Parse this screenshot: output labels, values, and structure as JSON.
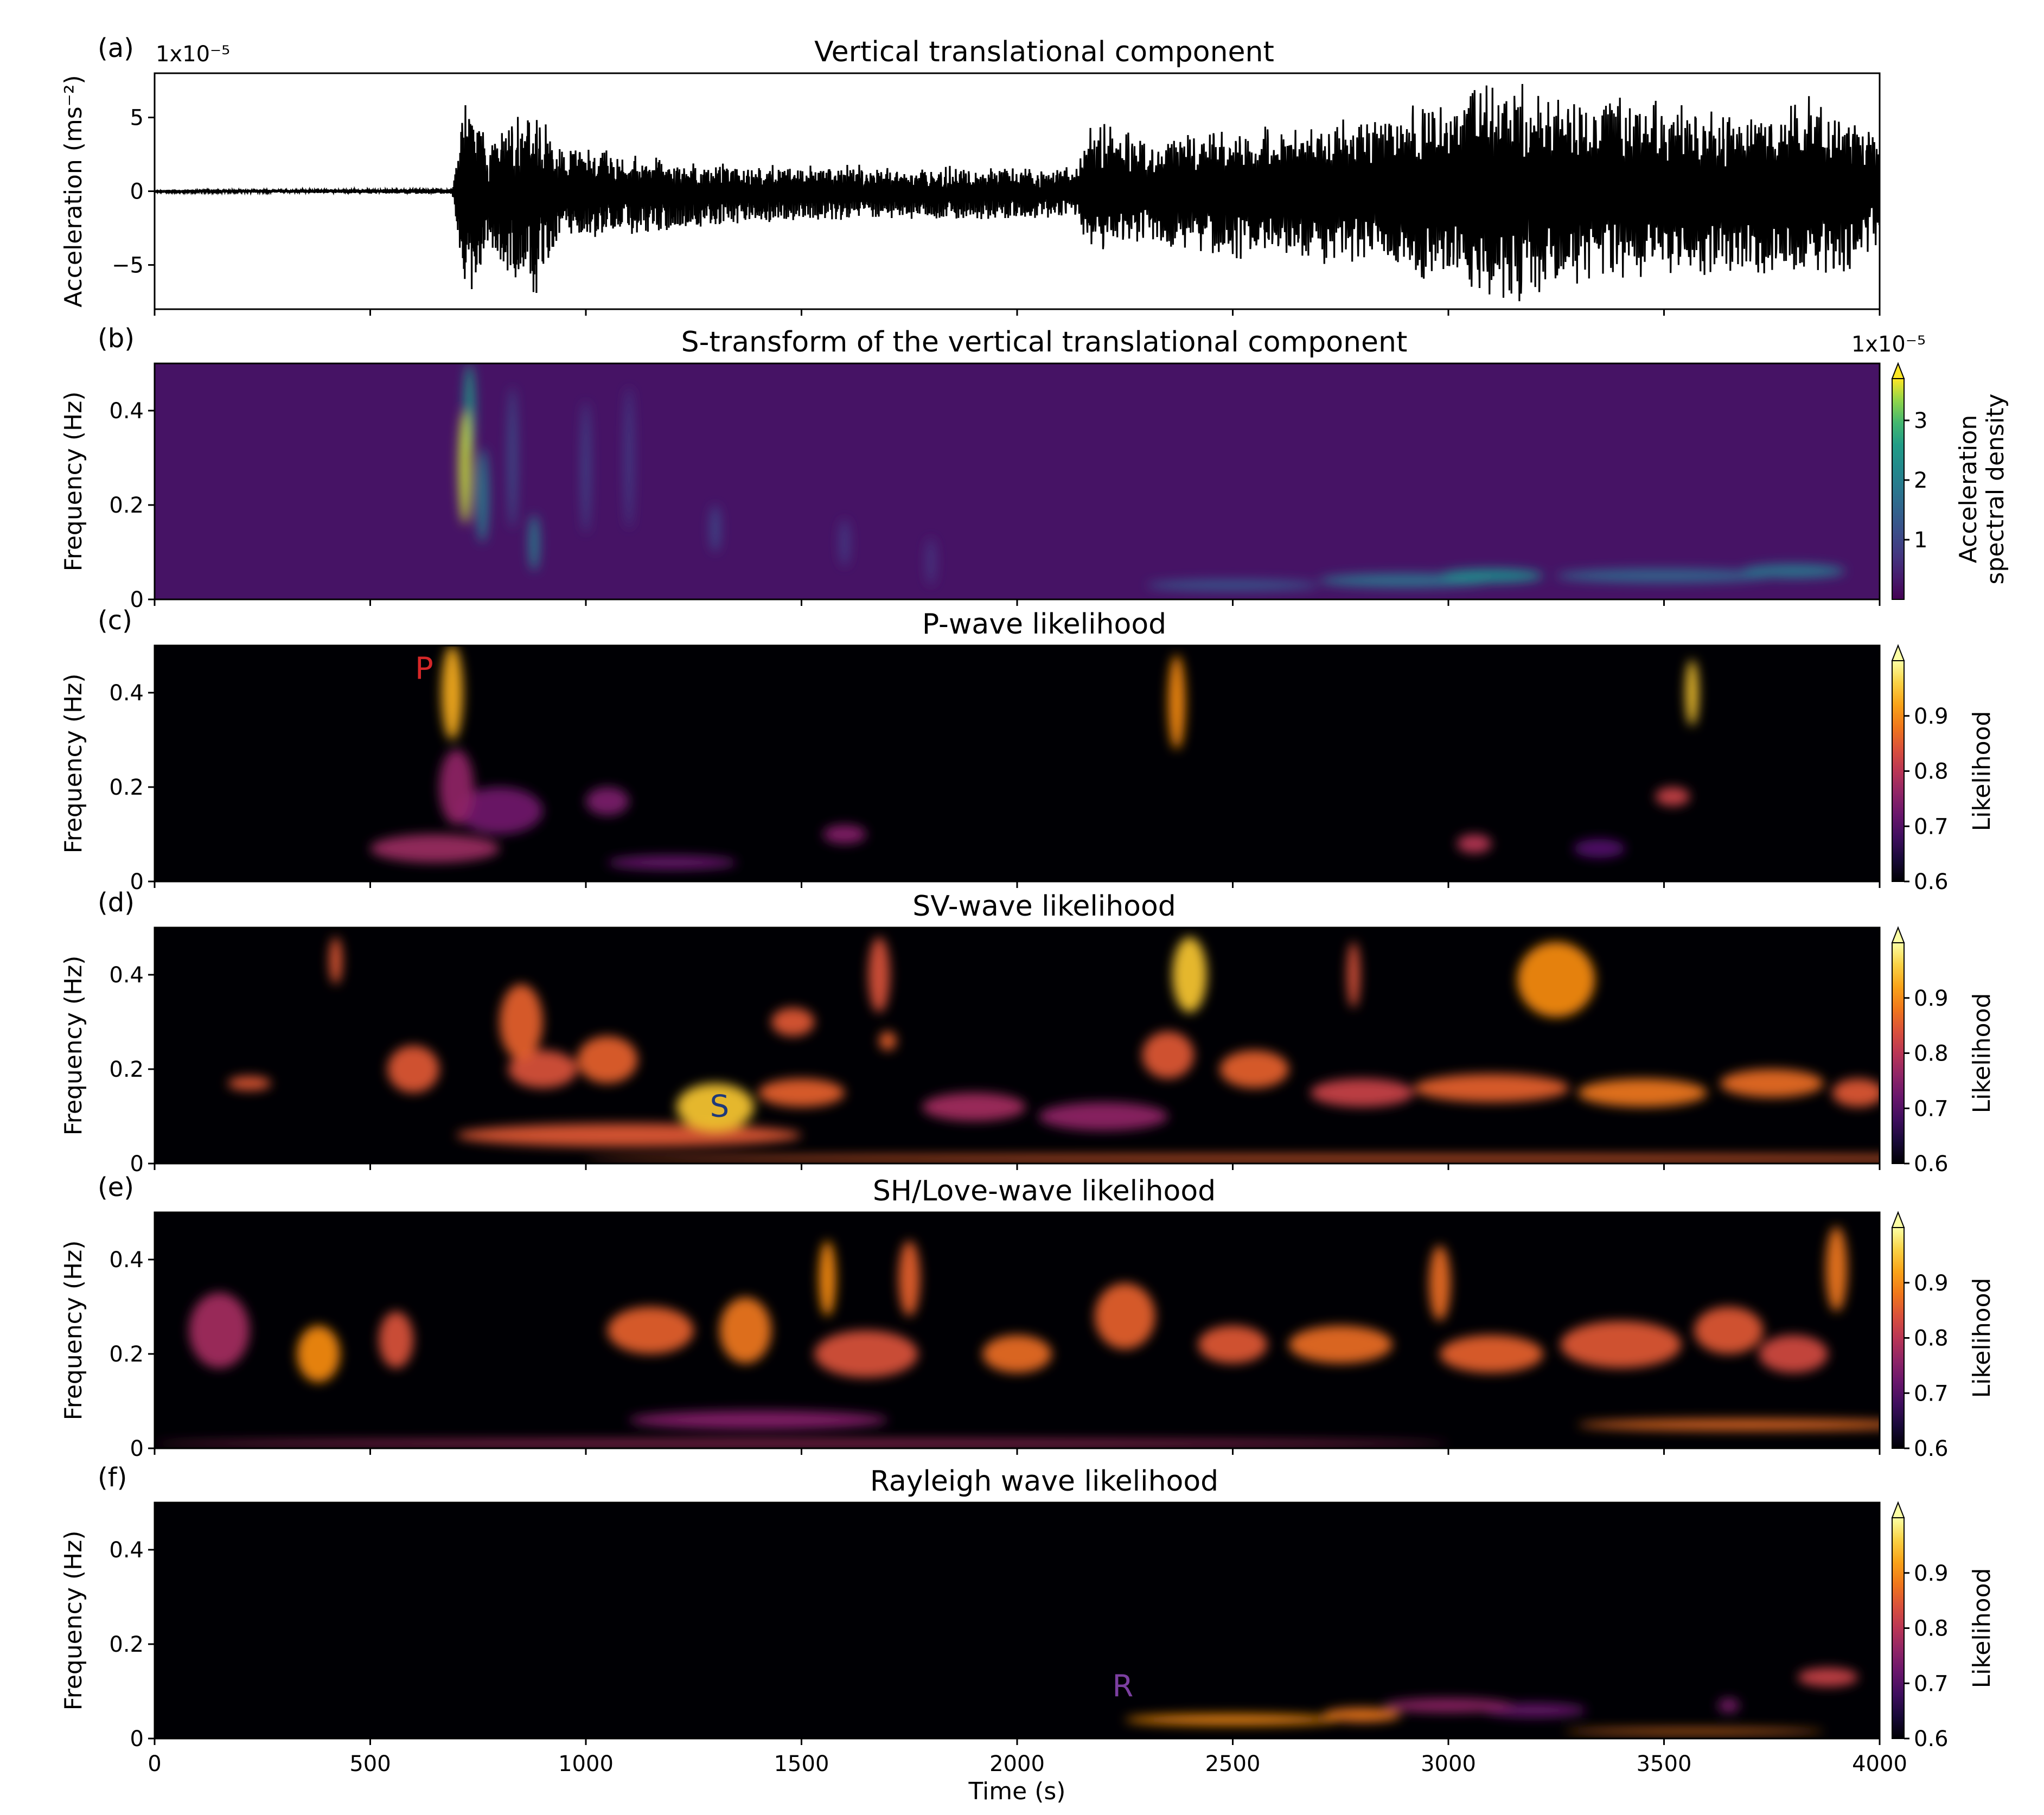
{
  "chart_data": [
    {
      "panel_label": "(a)",
      "type": "line",
      "title": "Vertical translational component",
      "ylabel": "Acceleration (ms⁻²)",
      "y_multiplier": "1x10⁻⁵",
      "xlim": [
        0,
        4000
      ],
      "ylim": [
        -8,
        8
      ],
      "yticks": [
        "5",
        "0",
        "−5"
      ],
      "ytick_values": [
        5,
        0,
        -5
      ],
      "color": "#000000",
      "envelope": [
        {
          "t": 0,
          "amp": 0.05
        },
        {
          "t": 690,
          "amp": 0.2
        },
        {
          "t": 720,
          "amp": 7.5
        },
        {
          "t": 780,
          "amp": 4.2
        },
        {
          "t": 880,
          "amp": 7.5
        },
        {
          "t": 930,
          "amp": 3.5
        },
        {
          "t": 1100,
          "amp": 3.0
        },
        {
          "t": 1300,
          "amp": 2.3
        },
        {
          "t": 1600,
          "amp": 2.0
        },
        {
          "t": 1900,
          "amp": 1.9
        },
        {
          "t": 2130,
          "amp": 1.8
        },
        {
          "t": 2180,
          "amp": 5.0
        },
        {
          "t": 2300,
          "amp": 3.5
        },
        {
          "t": 2500,
          "amp": 4.8
        },
        {
          "t": 2800,
          "amp": 5.2
        },
        {
          "t": 3000,
          "amp": 6.5
        },
        {
          "t": 3150,
          "amp": 7.8
        },
        {
          "t": 3300,
          "amp": 6.5
        },
        {
          "t": 3500,
          "amp": 6.2
        },
        {
          "t": 3700,
          "amp": 5.8
        },
        {
          "t": 3900,
          "amp": 6.8
        },
        {
          "t": 4000,
          "amp": 3.5
        }
      ]
    },
    {
      "panel_label": "(b)",
      "type": "heatmap",
      "title": "S-transform of the vertical translational component",
      "ylabel": "Frequency (Hz)",
      "xlim": [
        0,
        4000
      ],
      "ylim": [
        0,
        0.5
      ],
      "yticks": [
        "0.4",
        "0.2",
        "0"
      ],
      "ytick_values": [
        0.4,
        0.2,
        0
      ],
      "colorbar": {
        "label": [
          "Acceleration",
          "spectral density"
        ],
        "multiplier": "1x10⁻⁵",
        "ticks": [
          "1",
          "2",
          "3"
        ],
        "tick_values": [
          1,
          2,
          3
        ],
        "range": [
          0,
          3.7
        ]
      },
      "colormap": "viridis",
      "background_value": 0.25,
      "blobs": [
        {
          "t": 720,
          "f": 0.28,
          "dt": 15,
          "df": 0.12,
          "v": 3.5
        },
        {
          "t": 730,
          "f": 0.4,
          "dt": 12,
          "df": 0.1,
          "v": 2.6
        },
        {
          "t": 760,
          "f": 0.22,
          "dt": 14,
          "df": 0.1,
          "v": 2.0
        },
        {
          "t": 880,
          "f": 0.12,
          "dt": 12,
          "df": 0.06,
          "v": 2.0
        },
        {
          "t": 830,
          "f": 0.3,
          "dt": 10,
          "df": 0.15,
          "v": 1.2
        },
        {
          "t": 1000,
          "f": 0.28,
          "dt": 10,
          "df": 0.14,
          "v": 1.0
        },
        {
          "t": 1100,
          "f": 0.3,
          "dt": 10,
          "df": 0.15,
          "v": 0.9
        },
        {
          "t": 1300,
          "f": 0.15,
          "dt": 12,
          "df": 0.05,
          "v": 1.0
        },
        {
          "t": 1600,
          "f": 0.12,
          "dt": 12,
          "df": 0.05,
          "v": 0.8
        },
        {
          "t": 1800,
          "f": 0.08,
          "dt": 12,
          "df": 0.05,
          "v": 0.7
        },
        {
          "t": 2900,
          "f": 0.04,
          "dt": 200,
          "df": 0.015,
          "v": 1.8
        },
        {
          "t": 3100,
          "f": 0.05,
          "dt": 120,
          "df": 0.015,
          "v": 2.3
        },
        {
          "t": 3500,
          "f": 0.05,
          "dt": 250,
          "df": 0.015,
          "v": 1.6
        },
        {
          "t": 3800,
          "f": 0.06,
          "dt": 120,
          "df": 0.015,
          "v": 1.9
        },
        {
          "t": 2500,
          "f": 0.03,
          "dt": 200,
          "df": 0.012,
          "v": 1.3
        }
      ]
    },
    {
      "panel_label": "(c)",
      "type": "heatmap",
      "title": "P-wave likelihood",
      "ylabel": "Frequency (Hz)",
      "xlim": [
        0,
        4000
      ],
      "ylim": [
        0,
        0.5
      ],
      "yticks": [
        "0.4",
        "0.2",
        "0"
      ],
      "ytick_values": [
        0.4,
        0.2,
        0
      ],
      "colorbar": {
        "label": [
          "Likelihood"
        ],
        "ticks": [
          "0.6",
          "0.7",
          "0.8",
          "0.9"
        ],
        "tick_values": [
          0.6,
          0.7,
          0.8,
          0.9
        ],
        "range": [
          0.6,
          1.0
        ]
      },
      "colormap": "inferno",
      "background_value": 0.55,
      "annotation": {
        "text": "P",
        "t": 625,
        "f": 0.45,
        "color": "#d62728"
      },
      "blobs": [
        {
          "t": 690,
          "f": 0.4,
          "dt": 25,
          "df": 0.1,
          "v": 0.93
        },
        {
          "t": 700,
          "f": 0.2,
          "dt": 40,
          "df": 0.08,
          "v": 0.76
        },
        {
          "t": 650,
          "f": 0.07,
          "dt": 150,
          "df": 0.03,
          "v": 0.77
        },
        {
          "t": 800,
          "f": 0.15,
          "dt": 100,
          "df": 0.05,
          "v": 0.73
        },
        {
          "t": 1050,
          "f": 0.17,
          "dt": 50,
          "df": 0.03,
          "v": 0.74
        },
        {
          "t": 1200,
          "f": 0.04,
          "dt": 150,
          "df": 0.015,
          "v": 0.72
        },
        {
          "t": 1600,
          "f": 0.1,
          "dt": 50,
          "df": 0.02,
          "v": 0.75
        },
        {
          "t": 2370,
          "f": 0.38,
          "dt": 20,
          "df": 0.1,
          "v": 0.9
        },
        {
          "t": 3565,
          "f": 0.4,
          "dt": 15,
          "df": 0.07,
          "v": 0.95
        },
        {
          "t": 3520,
          "f": 0.18,
          "dt": 40,
          "df": 0.02,
          "v": 0.82
        },
        {
          "t": 3060,
          "f": 0.08,
          "dt": 40,
          "df": 0.02,
          "v": 0.8
        },
        {
          "t": 3350,
          "f": 0.07,
          "dt": 60,
          "df": 0.02,
          "v": 0.7
        }
      ]
    },
    {
      "panel_label": "(d)",
      "type": "heatmap",
      "title": "SV-wave likelihood",
      "ylabel": "Frequency (Hz)",
      "xlim": [
        0,
        4000
      ],
      "ylim": [
        0,
        0.5
      ],
      "yticks": [
        "0.4",
        "0.2",
        "0"
      ],
      "ytick_values": [
        0.4,
        0.2,
        0
      ],
      "colorbar": {
        "label": [
          "Likelihood"
        ],
        "ticks": [
          "0.6",
          "0.7",
          "0.8",
          "0.9"
        ],
        "tick_values": [
          0.6,
          0.7,
          0.8,
          0.9
        ],
        "range": [
          0.6,
          1.0
        ]
      },
      "colormap": "inferno",
      "background_value": 0.55,
      "annotation": {
        "text": "S",
        "t": 1310,
        "f": 0.12,
        "color": "#1f3a7a"
      },
      "blobs": [
        {
          "t": 3000,
          "f": 0.01,
          "dt": 2000,
          "df": 0.008,
          "v": 0.86
        },
        {
          "t": 1100,
          "f": 0.06,
          "dt": 400,
          "df": 0.025,
          "v": 0.85
        },
        {
          "t": 1300,
          "f": 0.12,
          "dt": 90,
          "df": 0.05,
          "v": 0.95
        },
        {
          "t": 600,
          "f": 0.2,
          "dt": 60,
          "df": 0.05,
          "v": 0.85
        },
        {
          "t": 850,
          "f": 0.3,
          "dt": 50,
          "df": 0.08,
          "v": 0.86
        },
        {
          "t": 900,
          "f": 0.2,
          "dt": 80,
          "df": 0.04,
          "v": 0.84
        },
        {
          "t": 1050,
          "f": 0.22,
          "dt": 70,
          "df": 0.05,
          "v": 0.86
        },
        {
          "t": 420,
          "f": 0.43,
          "dt": 15,
          "df": 0.05,
          "v": 0.85
        },
        {
          "t": 220,
          "f": 0.17,
          "dt": 50,
          "df": 0.015,
          "v": 0.85
        },
        {
          "t": 1480,
          "f": 0.3,
          "dt": 50,
          "df": 0.03,
          "v": 0.85
        },
        {
          "t": 1680,
          "f": 0.4,
          "dt": 25,
          "df": 0.08,
          "v": 0.84
        },
        {
          "t": 1700,
          "f": 0.26,
          "dt": 20,
          "df": 0.02,
          "v": 0.86
        },
        {
          "t": 1500,
          "f": 0.15,
          "dt": 100,
          "df": 0.03,
          "v": 0.86
        },
        {
          "t": 1900,
          "f": 0.12,
          "dt": 120,
          "df": 0.03,
          "v": 0.78
        },
        {
          "t": 2400,
          "f": 0.4,
          "dt": 40,
          "df": 0.08,
          "v": 0.95
        },
        {
          "t": 2350,
          "f": 0.23,
          "dt": 60,
          "df": 0.05,
          "v": 0.85
        },
        {
          "t": 2550,
          "f": 0.2,
          "dt": 80,
          "df": 0.04,
          "v": 0.86
        },
        {
          "t": 2800,
          "f": 0.15,
          "dt": 120,
          "df": 0.03,
          "v": 0.82
        },
        {
          "t": 2780,
          "f": 0.4,
          "dt": 15,
          "df": 0.07,
          "v": 0.84
        },
        {
          "t": 3250,
          "f": 0.39,
          "dt": 90,
          "df": 0.08,
          "v": 0.9
        },
        {
          "t": 3100,
          "f": 0.16,
          "dt": 180,
          "df": 0.03,
          "v": 0.86
        },
        {
          "t": 3450,
          "f": 0.15,
          "dt": 150,
          "df": 0.03,
          "v": 0.88
        },
        {
          "t": 3750,
          "f": 0.17,
          "dt": 120,
          "df": 0.03,
          "v": 0.87
        },
        {
          "t": 3950,
          "f": 0.15,
          "dt": 60,
          "df": 0.03,
          "v": 0.85
        },
        {
          "t": 2200,
          "f": 0.1,
          "dt": 150,
          "df": 0.03,
          "v": 0.76
        }
      ]
    },
    {
      "panel_label": "(e)",
      "type": "heatmap",
      "title": "SH/Love-wave likelihood",
      "ylabel": "Frequency (Hz)",
      "xlim": [
        0,
        4000
      ],
      "ylim": [
        0,
        0.5
      ],
      "yticks": [
        "0.4",
        "0.2",
        "0"
      ],
      "ytick_values": [
        0.4,
        0.2,
        0
      ],
      "colorbar": {
        "label": [
          "Likelihood"
        ],
        "ticks": [
          "0.6",
          "0.7",
          "0.8",
          "0.9"
        ],
        "tick_values": [
          0.6,
          0.7,
          0.8,
          0.9
        ],
        "range": [
          0.6,
          1.0
        ]
      },
      "colormap": "inferno",
      "background_value": 0.55,
      "blobs": [
        {
          "t": 3700,
          "f": 0.05,
          "dt": 400,
          "df": 0.012,
          "v": 0.87
        },
        {
          "t": 1500,
          "f": 0.01,
          "dt": 1500,
          "df": 0.008,
          "v": 0.78
        },
        {
          "t": 1400,
          "f": 0.06,
          "dt": 300,
          "df": 0.02,
          "v": 0.75
        },
        {
          "t": 380,
          "f": 0.2,
          "dt": 50,
          "df": 0.06,
          "v": 0.9
        },
        {
          "t": 150,
          "f": 0.25,
          "dt": 70,
          "df": 0.08,
          "v": 0.78
        },
        {
          "t": 560,
          "f": 0.23,
          "dt": 40,
          "df": 0.06,
          "v": 0.84
        },
        {
          "t": 1150,
          "f": 0.25,
          "dt": 100,
          "df": 0.05,
          "v": 0.86
        },
        {
          "t": 1370,
          "f": 0.25,
          "dt": 60,
          "df": 0.07,
          "v": 0.88
        },
        {
          "t": 1560,
          "f": 0.36,
          "dt": 20,
          "df": 0.08,
          "v": 0.9
        },
        {
          "t": 1650,
          "f": 0.2,
          "dt": 120,
          "df": 0.05,
          "v": 0.84
        },
        {
          "t": 1750,
          "f": 0.36,
          "dt": 25,
          "df": 0.08,
          "v": 0.86
        },
        {
          "t": 2000,
          "f": 0.2,
          "dt": 80,
          "df": 0.04,
          "v": 0.87
        },
        {
          "t": 2250,
          "f": 0.28,
          "dt": 70,
          "df": 0.07,
          "v": 0.86
        },
        {
          "t": 2500,
          "f": 0.22,
          "dt": 80,
          "df": 0.04,
          "v": 0.85
        },
        {
          "t": 2750,
          "f": 0.22,
          "dt": 120,
          "df": 0.04,
          "v": 0.87
        },
        {
          "t": 2980,
          "f": 0.35,
          "dt": 25,
          "df": 0.08,
          "v": 0.87
        },
        {
          "t": 3100,
          "f": 0.2,
          "dt": 120,
          "df": 0.04,
          "v": 0.86
        },
        {
          "t": 3400,
          "f": 0.22,
          "dt": 140,
          "df": 0.05,
          "v": 0.85
        },
        {
          "t": 3650,
          "f": 0.25,
          "dt": 80,
          "df": 0.05,
          "v": 0.85
        },
        {
          "t": 3900,
          "f": 0.38,
          "dt": 25,
          "df": 0.09,
          "v": 0.88
        },
        {
          "t": 3800,
          "f": 0.2,
          "dt": 80,
          "df": 0.04,
          "v": 0.83
        }
      ]
    },
    {
      "panel_label": "(f)",
      "type": "heatmap",
      "title": "Rayleigh wave likelihood",
      "ylabel": "Frequency (Hz)",
      "xlabel": "Time (s)",
      "xlim": [
        0,
        4000
      ],
      "ylim": [
        0,
        0.5
      ],
      "xticks": [
        "0",
        "500",
        "1000",
        "1500",
        "2000",
        "2500",
        "3000",
        "3500",
        "4000"
      ],
      "xtick_values": [
        0,
        500,
        1000,
        1500,
        2000,
        2500,
        3000,
        3500,
        4000
      ],
      "yticks": [
        "0.4",
        "0.2",
        "0"
      ],
      "ytick_values": [
        0.4,
        0.2,
        0
      ],
      "colorbar": {
        "label": [
          "Likelihood"
        ],
        "ticks": [
          "0.6",
          "0.7",
          "0.8",
          "0.9"
        ],
        "tick_values": [
          0.6,
          0.7,
          0.8,
          0.9
        ],
        "range": [
          0.6,
          1.0
        ]
      },
      "colormap": "inferno",
      "background_value": 0.55,
      "annotation": {
        "text": "R",
        "t": 2245,
        "f": 0.11,
        "color": "#7b3fa0"
      },
      "blobs": [
        {
          "t": 2500,
          "f": 0.04,
          "dt": 250,
          "df": 0.012,
          "v": 0.9
        },
        {
          "t": 2800,
          "f": 0.05,
          "dt": 90,
          "df": 0.015,
          "v": 0.88
        },
        {
          "t": 3000,
          "f": 0.07,
          "dt": 150,
          "df": 0.015,
          "v": 0.76
        },
        {
          "t": 3200,
          "f": 0.06,
          "dt": 120,
          "df": 0.015,
          "v": 0.72
        },
        {
          "t": 3570,
          "f": 0.015,
          "dt": 300,
          "df": 0.006,
          "v": 0.88
        },
        {
          "t": 3880,
          "f": 0.13,
          "dt": 70,
          "df": 0.02,
          "v": 0.82
        },
        {
          "t": 3650,
          "f": 0.07,
          "dt": 25,
          "df": 0.015,
          "v": 0.74
        }
      ]
    }
  ]
}
